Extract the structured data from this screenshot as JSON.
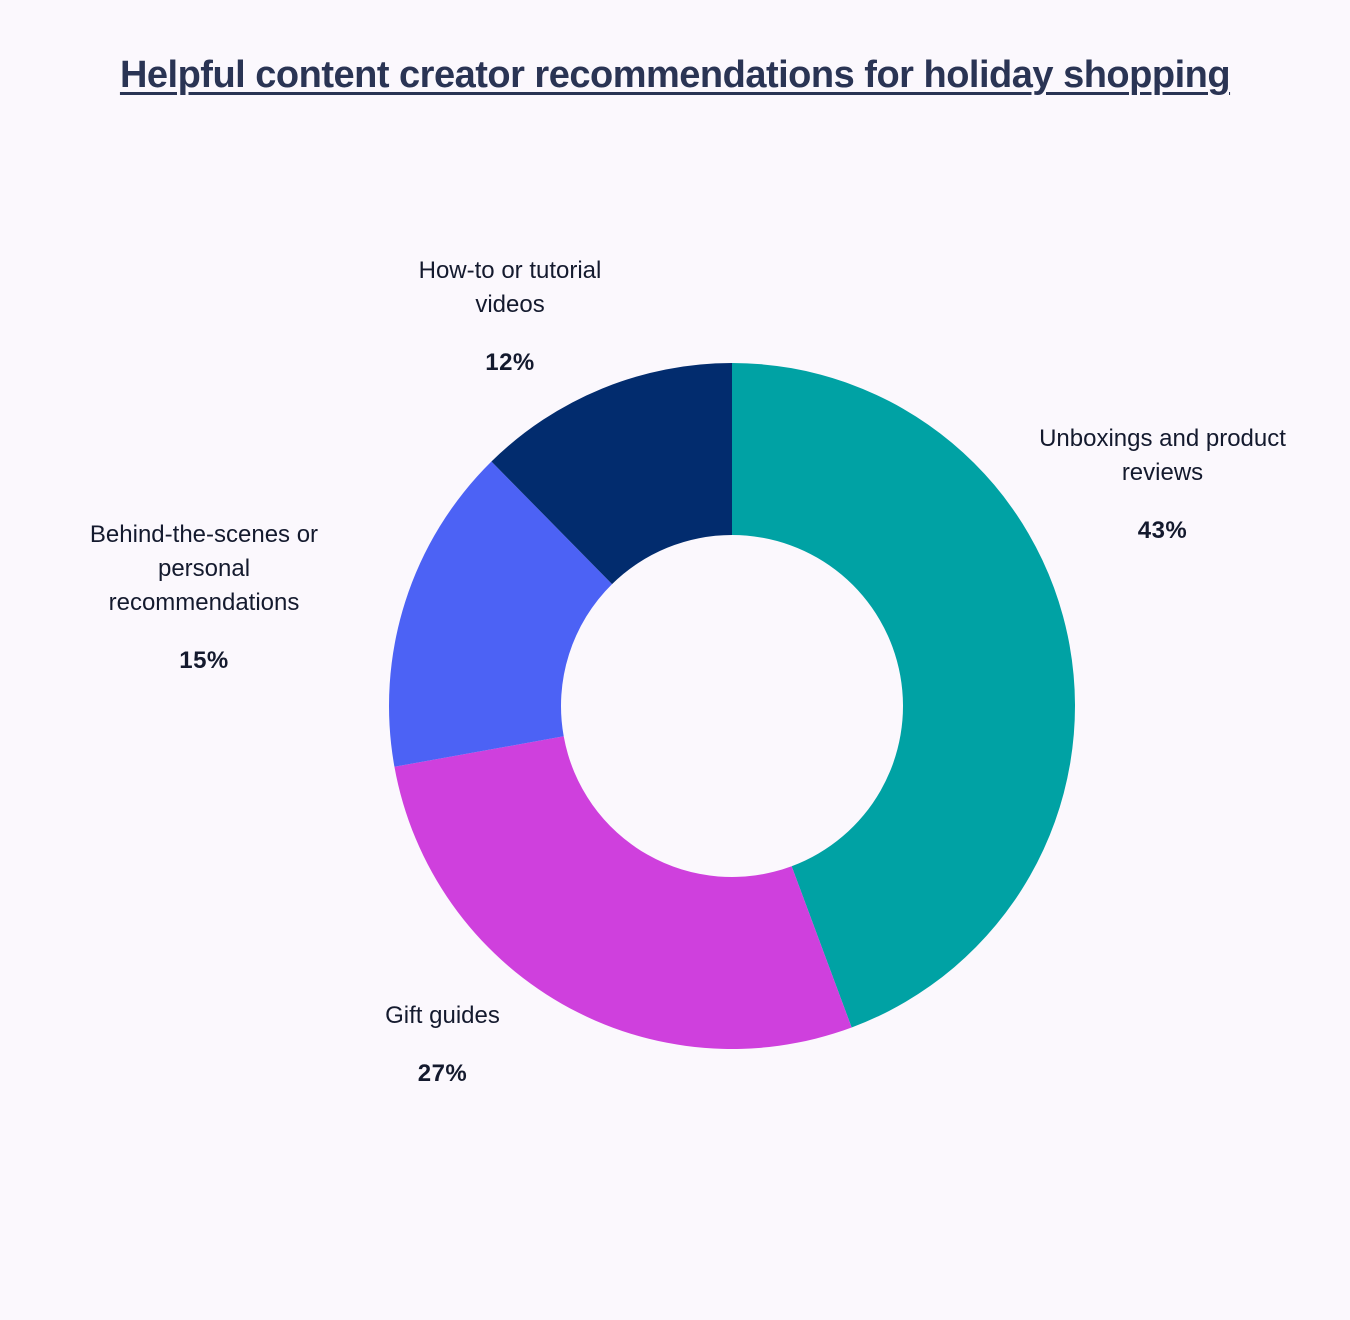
{
  "chart_data": {
    "type": "pie",
    "title": "Helpful content creator recommendations for holiday shopping",
    "donut": true,
    "slices": [
      {
        "label": "Unboxings and product reviews",
        "value": 43,
        "value_label": "43%",
        "color": "#00a2a4"
      },
      {
        "label": "Gift guides",
        "value": 27,
        "value_label": "27%",
        "color": "#cf40dd"
      },
      {
        "label": "Behind-the-scenes or personal recommendations",
        "value": 15,
        "value_label": "15%",
        "color": "#4c62f5"
      },
      {
        "label": "How-to or tutorial videos",
        "value": 12,
        "value_label": "12%",
        "color": "#022c6e"
      }
    ]
  }
}
